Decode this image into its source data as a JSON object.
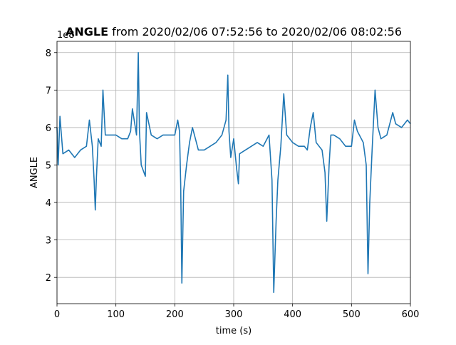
{
  "chart_data": {
    "type": "line",
    "title": {
      "bold": "ANGLE",
      "rest": " from 2020/02/06 07:52:56 to 2020/02/06 08:02:56"
    },
    "x_label": "time (s)",
    "y_label": "ANGLE",
    "y_offset_label": "1e8",
    "xlim": [
      0,
      600
    ],
    "xticks": [
      0,
      100,
      200,
      300,
      400,
      500,
      600
    ],
    "ylim": [
      1.3,
      8.3
    ],
    "yticks": [
      2,
      3,
      4,
      5,
      6,
      7,
      8
    ],
    "grid": true,
    "series": [
      {
        "name": "ANGLE",
        "color": "#1f77b4",
        "x": [
          0,
          2,
          5,
          10,
          20,
          30,
          40,
          50,
          55,
          60,
          63,
          65,
          67,
          70,
          75,
          78,
          82,
          90,
          100,
          110,
          120,
          125,
          128,
          135,
          138,
          140,
          143,
          150,
          152,
          160,
          170,
          180,
          200,
          205,
          208,
          210,
          212,
          215,
          220,
          225,
          230,
          240,
          250,
          260,
          270,
          280,
          287,
          290,
          292,
          295,
          300,
          305,
          308,
          310,
          320,
          330,
          340,
          350,
          360,
          365,
          368,
          372,
          375,
          380,
          385,
          390,
          400,
          410,
          420,
          425,
          430,
          435,
          440,
          450,
          455,
          458,
          462,
          465,
          470,
          480,
          490,
          500,
          505,
          510,
          520,
          525,
          528,
          531,
          535,
          540,
          545,
          550,
          560,
          570,
          575,
          585,
          595,
          600
        ],
        "values": [
          6.0,
          5.0,
          6.3,
          5.3,
          5.4,
          5.2,
          5.4,
          5.5,
          6.2,
          5.5,
          4.6,
          3.8,
          4.7,
          5.7,
          5.5,
          7.0,
          5.8,
          5.8,
          5.8,
          5.7,
          5.7,
          5.9,
          6.5,
          5.8,
          8.0,
          5.9,
          5.0,
          4.7,
          6.4,
          5.8,
          5.7,
          5.8,
          5.8,
          6.2,
          5.9,
          4.5,
          1.85,
          4.3,
          5.0,
          5.6,
          6.0,
          5.4,
          5.4,
          5.5,
          5.6,
          5.8,
          6.2,
          7.4,
          5.9,
          5.2,
          5.7,
          4.9,
          4.5,
          5.3,
          5.4,
          5.5,
          5.6,
          5.5,
          5.8,
          4.6,
          1.6,
          3.5,
          4.6,
          5.5,
          6.9,
          5.8,
          5.6,
          5.5,
          5.5,
          5.4,
          6.0,
          6.4,
          5.6,
          5.4,
          4.8,
          3.5,
          5.0,
          5.8,
          5.8,
          5.7,
          5.5,
          5.5,
          6.2,
          5.9,
          5.6,
          5.0,
          2.1,
          4.0,
          5.4,
          7.0,
          6.0,
          5.7,
          5.8,
          6.4,
          6.1,
          6.0,
          6.2,
          6.1
        ]
      }
    ]
  }
}
